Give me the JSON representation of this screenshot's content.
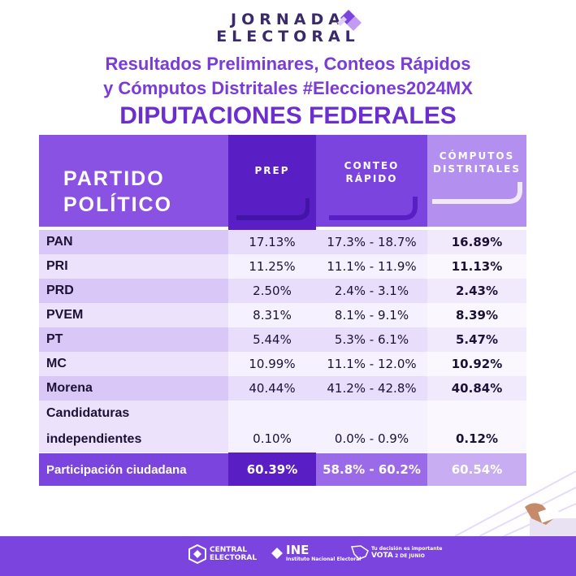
{
  "logo": {
    "line1": "JORNADA",
    "line2": "ELECTORAL"
  },
  "headline": {
    "line1": "Resultados Preliminares, Conteos Rápidos",
    "line2": "y Cómputos Distritales #Elecciones2024MX",
    "title": "DIPUTACIONES FEDERALES"
  },
  "table": {
    "headers": {
      "party_line1": "PARTIDO",
      "party_line2": "POLÍTICO",
      "prep": "PREP",
      "conteo_line1": "CONTEO",
      "conteo_line2": "RÁPIDO",
      "computos_line1": "CÓMPUTOS",
      "computos_line2": "DISTRITALES"
    },
    "rows": [
      {
        "party": "PAN",
        "prep": "17.13%",
        "conteo": "17.3% - 18.7%",
        "computos": "16.89%"
      },
      {
        "party": "PRI",
        "prep": "11.25%",
        "conteo": "11.1% - 11.9%",
        "computos": "11.13%"
      },
      {
        "party": "PRD",
        "prep": "2.50%",
        "conteo": "2.4% - 3.1%",
        "computos": "2.43%"
      },
      {
        "party": "PVEM",
        "prep": "8.31%",
        "conteo": "8.1% - 9.1%",
        "computos": "8.39%"
      },
      {
        "party": "PT",
        "prep": "5.44%",
        "conteo": "5.3% - 6.1%",
        "computos": "5.47%"
      },
      {
        "party": "MC",
        "prep": "10.99%",
        "conteo": "11.1% - 12.0%",
        "computos": "10.92%"
      },
      {
        "party": "Morena",
        "prep": "40.44%",
        "conteo": "41.2% - 42.8%",
        "computos": "40.84%"
      }
    ],
    "independientes": {
      "party_line1": "Candidaturas",
      "party_line2": "independientes",
      "prep": "0.10%",
      "conteo": "0.0% - 0.9%",
      "computos": "0.12%"
    },
    "participacion": {
      "party": "Participación ciudadana",
      "prep": "60.39%",
      "conteo": "58.8% - 60.2%",
      "computos": "60.54%"
    }
  },
  "footer": {
    "central_line1": "CENTRAL",
    "central_line2": "ELECTORAL",
    "ine": "INE",
    "ine_sub": "Instituto Nacional Electoral",
    "vota_line1": "Tu decisión es importante",
    "vota_word": "VOTA",
    "vota_date": "2 DE JUNIO"
  },
  "colors": {
    "brand": "#7c44df",
    "dark": "#5a1fc4",
    "title": "#6b2fd0"
  }
}
